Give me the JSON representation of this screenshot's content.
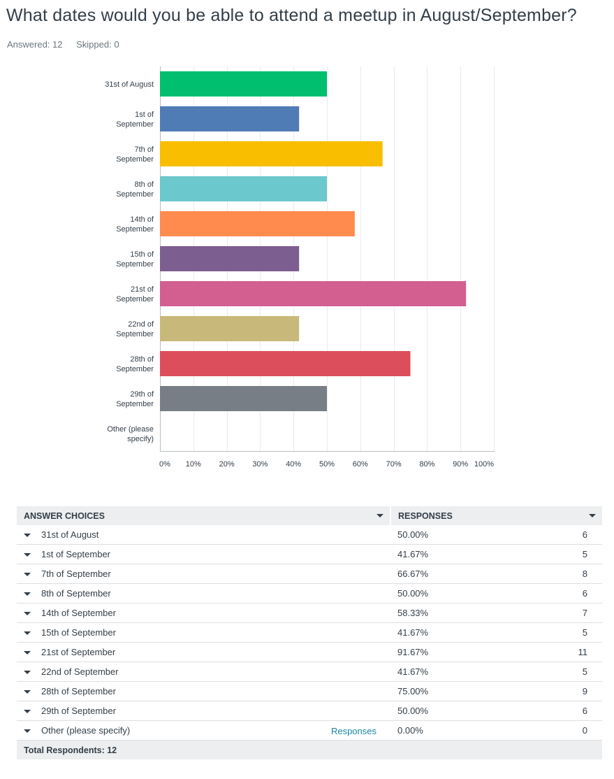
{
  "question": {
    "title": "What dates would you be able to attend a meetup in August/September?",
    "answered": "Answered: 12",
    "skipped": "Skipped: 0"
  },
  "chart_data": {
    "type": "bar",
    "orientation": "horizontal",
    "categories": [
      [
        "31st of August"
      ],
      [
        "1st of",
        "September"
      ],
      [
        "7th of",
        "September"
      ],
      [
        "8th of",
        "September"
      ],
      [
        "14th of",
        "September"
      ],
      [
        "15th of",
        "September"
      ],
      [
        "21st of",
        "September"
      ],
      [
        "22nd of",
        "September"
      ],
      [
        "28th of",
        "September"
      ],
      [
        "29th of",
        "September"
      ],
      [
        "Other (please",
        "specify)"
      ]
    ],
    "values": [
      50.0,
      41.67,
      66.67,
      50.0,
      58.33,
      41.67,
      91.67,
      41.67,
      75.0,
      50.0,
      0.0
    ],
    "colors": [
      "#00bf6f",
      "#507cb6",
      "#f9be00",
      "#6bc8cd",
      "#ff8b4f",
      "#7d5e90",
      "#d25f90",
      "#c8b97a",
      "#dc4e5b",
      "#787e85",
      "#00bf6f"
    ],
    "xlim": [
      0,
      100
    ],
    "xticks": [
      "0%",
      "10%",
      "20%",
      "30%",
      "40%",
      "50%",
      "60%",
      "70%",
      "80%",
      "90%",
      "100%"
    ],
    "grid": true
  },
  "table": {
    "headers": {
      "choice": "ANSWER CHOICES",
      "responses": "RESPONSES"
    },
    "rows": [
      {
        "choice": "31st of August",
        "pct": "50.00%",
        "count": "6"
      },
      {
        "choice": "1st of September",
        "pct": "41.67%",
        "count": "5"
      },
      {
        "choice": "7th of September",
        "pct": "66.67%",
        "count": "8"
      },
      {
        "choice": "8th of September",
        "pct": "50.00%",
        "count": "6"
      },
      {
        "choice": "14th of September",
        "pct": "58.33%",
        "count": "7"
      },
      {
        "choice": "15th of September",
        "pct": "41.67%",
        "count": "5"
      },
      {
        "choice": "21st of September",
        "pct": "91.67%",
        "count": "11"
      },
      {
        "choice": "22nd of September",
        "pct": "41.67%",
        "count": "5"
      },
      {
        "choice": "28th of September",
        "pct": "75.00%",
        "count": "9"
      },
      {
        "choice": "29th of September",
        "pct": "50.00%",
        "count": "6"
      },
      {
        "choice": "Other (please specify)",
        "pct": "0.00%",
        "count": "0",
        "link": "Responses"
      }
    ],
    "total": "Total Respondents: 12"
  }
}
